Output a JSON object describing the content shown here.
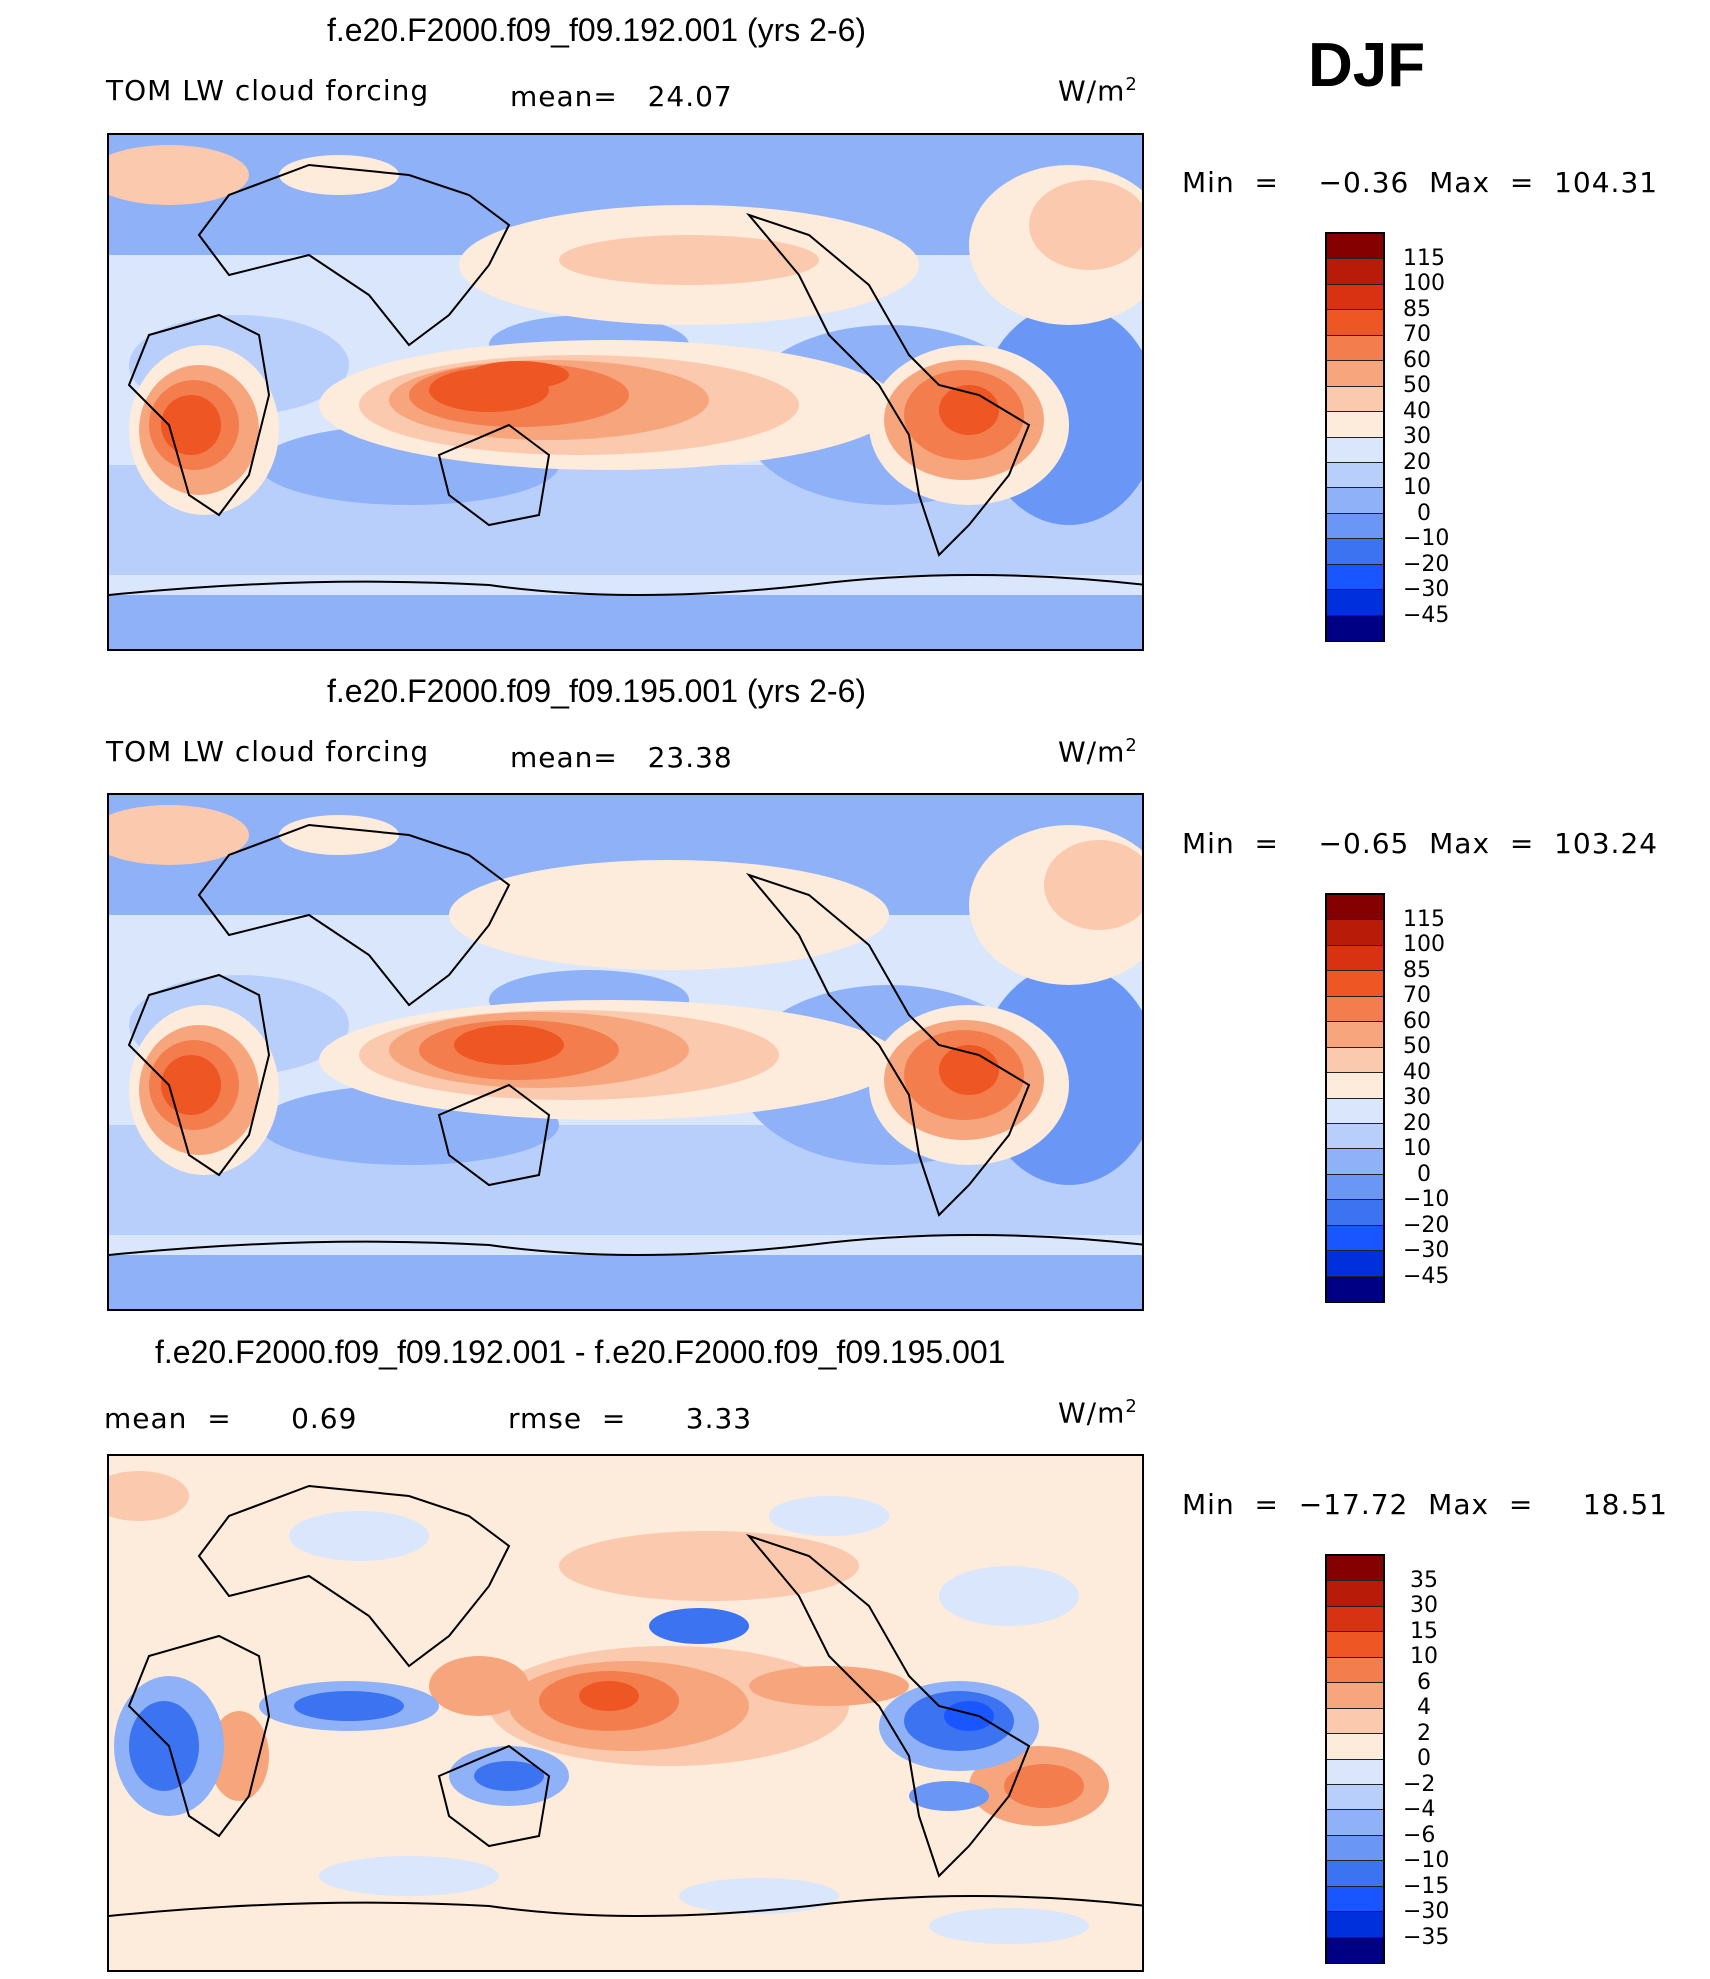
{
  "season": "DJF",
  "colors": {
    "pos_scale": [
      "#000085",
      "#0018b0",
      "#0030dc",
      "#1a56ff",
      "#3b73f0",
      "#6a97f5",
      "#8fb1f8",
      "#b8cefb",
      "#d9e6fc",
      "#fdebdc",
      "#fbc9ae",
      "#f7a57d",
      "#f47d4e",
      "#ee5623",
      "#d93212",
      "#b81b08",
      "#850000"
    ],
    "diff_scale": [
      "#000085",
      "#0018b0",
      "#0030dc",
      "#1a56ff",
      "#3b73f0",
      "#6a97f5",
      "#8fb1f8",
      "#b8cefb",
      "#d9e6fc",
      "#fdebdc",
      "#fbc9ae",
      "#f7a57d",
      "#f47d4e",
      "#ee5623",
      "#d93212",
      "#b81b08",
      "#850000"
    ]
  },
  "panels": [
    {
      "title": "f.e20.F2000.f09_f09.192.001 (yrs 2-6)",
      "variable": "TOM LW cloud forcing",
      "mean_text": "mean=   24.07",
      "units_base": "W/m",
      "units_exp": "2",
      "minmax": "Min  =    −0.36  Max  =  104.31",
      "levels": [
        "115",
        "100",
        "85",
        "70",
        "60",
        "50",
        "40",
        "30",
        "20",
        "10",
        "0",
        "−10",
        "−20",
        "−30",
        "−45"
      ]
    },
    {
      "title": "f.e20.F2000.f09_f09.195.001 (yrs 2-6)",
      "variable": "TOM LW cloud forcing",
      "mean_text": "mean=   23.38",
      "units_base": "W/m",
      "units_exp": "2",
      "minmax": "Min  =    −0.65  Max  =  103.24",
      "levels": [
        "115",
        "100",
        "85",
        "70",
        "60",
        "50",
        "40",
        "30",
        "20",
        "10",
        "0",
        "−10",
        "−20",
        "−30",
        "−45"
      ]
    },
    {
      "title": "f.e20.F2000.f09_f09.192.001 - f.e20.F2000.f09_f09.195.001",
      "mean_text": "mean  =      0.69",
      "rmse_text": "rmse  =      3.33",
      "units_base": "W/m",
      "units_exp": "2",
      "minmax": "Min  =  −17.72  Max  =     18.51",
      "levels": [
        "35",
        "30",
        "15",
        "10",
        "6",
        "4",
        "2",
        "0",
        "−2",
        "−4",
        "−6",
        "−10",
        "−15",
        "−30",
        "−35"
      ]
    }
  ],
  "chart_data": [
    {
      "type": "heatmap",
      "title": "f.e20.F2000.f09_f09.192.001 (yrs 2-6)",
      "variable": "TOM LW cloud forcing",
      "units": "W/m2",
      "season": "DJF",
      "mean": 24.07,
      "min": -0.36,
      "max": 104.31,
      "contour_levels": [
        -45,
        -30,
        -20,
        -10,
        0,
        10,
        20,
        30,
        40,
        50,
        60,
        70,
        85,
        100,
        115
      ]
    },
    {
      "type": "heatmap",
      "title": "f.e20.F2000.f09_f09.195.001 (yrs 2-6)",
      "variable": "TOM LW cloud forcing",
      "units": "W/m2",
      "season": "DJF",
      "mean": 23.38,
      "min": -0.65,
      "max": 103.24,
      "contour_levels": [
        -45,
        -30,
        -20,
        -10,
        0,
        10,
        20,
        30,
        40,
        50,
        60,
        70,
        85,
        100,
        115
      ]
    },
    {
      "type": "heatmap",
      "title": "f.e20.F2000.f09_f09.192.001 - f.e20.F2000.f09_f09.195.001",
      "units": "W/m2",
      "season": "DJF",
      "mean": 0.69,
      "rmse": 3.33,
      "min": -17.72,
      "max": 18.51,
      "contour_levels": [
        -35,
        -30,
        -15,
        -10,
        -6,
        -4,
        -2,
        0,
        2,
        4,
        6,
        10,
        15,
        30,
        35
      ]
    }
  ]
}
